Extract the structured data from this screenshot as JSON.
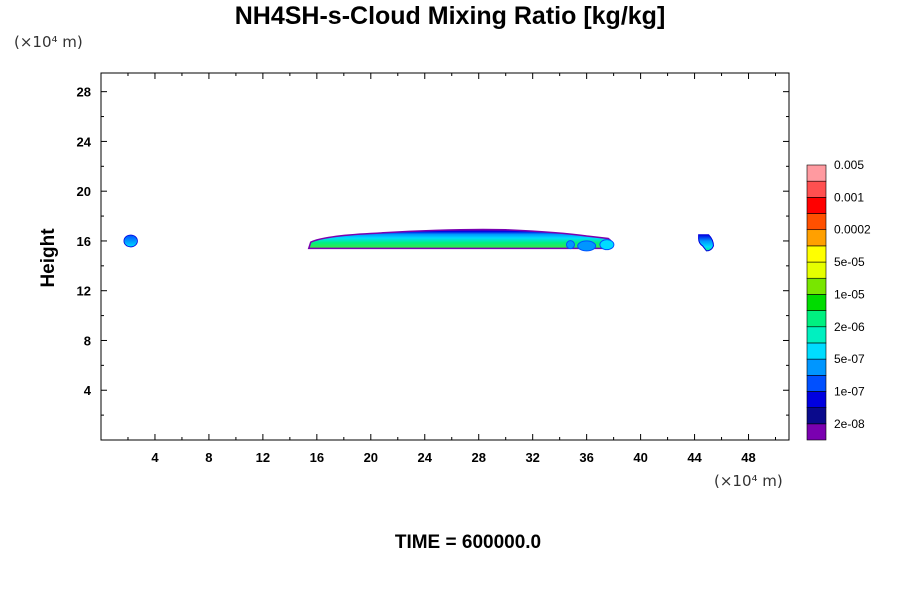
{
  "chart_data": {
    "type": "heatmap",
    "title": "NH4SH-s-Cloud Mixing Ratio [kg/kg]",
    "ylabel": "Height",
    "y_unit": "(×10⁴ m)",
    "x_unit": "(×10⁴ m)",
    "time_label": "TIME = 600000.0",
    "xlim": [
      0,
      51
    ],
    "ylim": [
      0,
      29.5
    ],
    "xticks": [
      4,
      8,
      12,
      16,
      20,
      24,
      28,
      32,
      36,
      40,
      44,
      48
    ],
    "yticks": [
      4,
      8,
      12,
      16,
      20,
      24,
      28
    ],
    "colorbar": {
      "colors": [
        "#7a00b0",
        "#0a0a8c",
        "#0000e0",
        "#0050ff",
        "#0096ff",
        "#00dcff",
        "#00f0c0",
        "#00f080",
        "#00dc00",
        "#78e600",
        "#e6ff00",
        "#ffff00",
        "#ffa000",
        "#ff5000",
        "#ff0000",
        "#ff5050",
        "#ff9aa0"
      ],
      "labels": [
        "2e-08",
        "1e-07",
        "5e-07",
        "2e-06",
        "1e-05",
        "5e-05",
        "0.0002",
        "0.001",
        "0.005"
      ]
    },
    "cloud_regions": [
      {
        "x_range": [
          1.3,
          2.7
        ],
        "y_range": [
          15.6,
          16.5
        ],
        "peak_level": "5e-07"
      },
      {
        "x_range": [
          15.4,
          38.0
        ],
        "y_range": [
          15.4,
          17.0
        ],
        "peak_level": "1e-05"
      },
      {
        "x_range": [
          44.3,
          45.4
        ],
        "y_range": [
          15.2,
          16.5
        ],
        "peak_level": "2e-06"
      }
    ]
  }
}
